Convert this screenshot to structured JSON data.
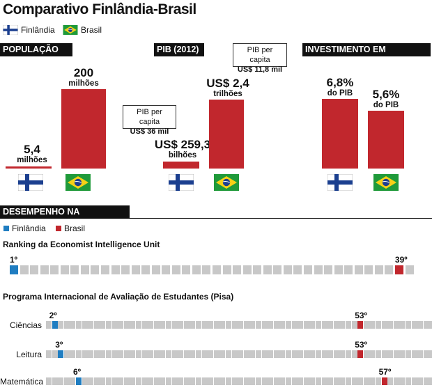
{
  "title": "Comparativo Finlândia-Brasil",
  "legend": {
    "finland": "Finlândia",
    "brazil": "Brasil"
  },
  "colors": {
    "finland": "#1f7dc1",
    "brazil": "#c1272d",
    "empty": "#c8c8c8"
  },
  "sections": {
    "populacao": "POPULAÇÃO",
    "pib": "PIB (2012)",
    "investimento": "INVESTIMENTO EM EDUCAÇÃO",
    "desempenho": "DESEMPENHO NA EDUCAÇÃO"
  },
  "populacao": {
    "finland": {
      "value": "5,4",
      "unit": "milhões",
      "amount": 5.4
    },
    "brazil": {
      "value": "200",
      "unit": "milhões",
      "amount": 200
    }
  },
  "pib": {
    "finland": {
      "value": "US$ 259,3",
      "unit": "bilhões",
      "amount": 259.3,
      "callout_label": "PIB per capita",
      "callout_value": "US$ 36 mil"
    },
    "brazil": {
      "value": "US$ 2,4",
      "unit": "trilhões",
      "amount": 2400,
      "callout_label": "PIB per capita",
      "callout_value": "US$ 11,8 mil"
    }
  },
  "investimento": {
    "finland": {
      "value": "6,8%",
      "unit": "do PIB",
      "amount": 6.8
    },
    "brazil": {
      "value": "5,6%",
      "unit": "do PIB",
      "amount": 5.6
    }
  },
  "desempenho": {
    "legend_finland": "Finlândia",
    "legend_brazil": "Brasil",
    "eiu_title": "Ranking da Economist Intelligence Unit",
    "pisa_title": "Programa Internacional de Avaliação de Estudantes (Pisa)"
  },
  "chart_data": {
    "type": "table",
    "rankings": [
      {
        "name": "Economist Intelligence Unit",
        "total": 40,
        "finland": 1,
        "brazil": 39,
        "finland_label": "1º",
        "brazil_label": "39º"
      },
      {
        "name": "Ciências",
        "total": 65,
        "finland": 2,
        "brazil": 53,
        "finland_label": "2º",
        "brazil_label": "53º"
      },
      {
        "name": "Leitura",
        "total": 65,
        "finland": 3,
        "brazil": 53,
        "finland_label": "3º",
        "brazil_label": "53º"
      },
      {
        "name": "Matemática",
        "total": 65,
        "finland": 6,
        "brazil": 57,
        "finland_label": "6º",
        "brazil_label": "57º"
      }
    ]
  }
}
